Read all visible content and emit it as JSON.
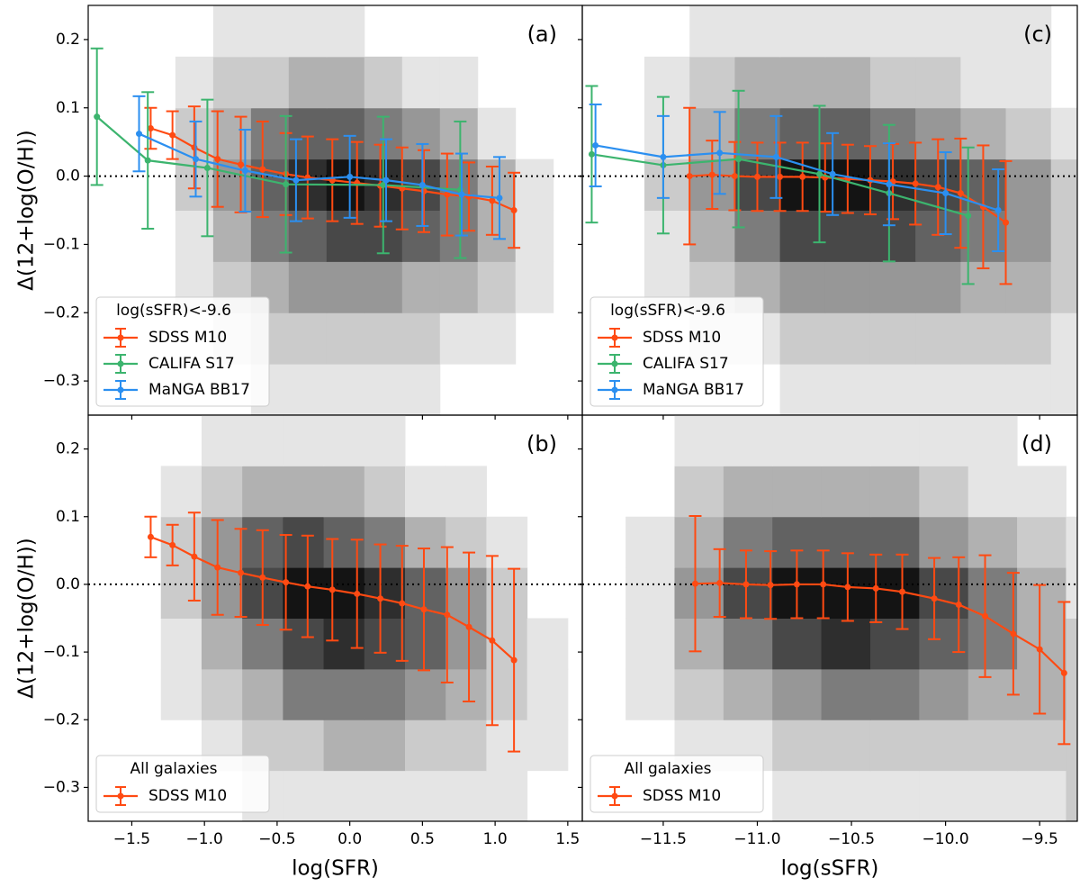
{
  "chart_data": [
    {
      "type": "errorbar",
      "panel_label": "(a)",
      "ylabel": "Δ(12+log(O/H))",
      "xlim": [
        -1.8,
        1.6
      ],
      "ylim": [
        -0.35,
        0.25
      ],
      "reference_line": 0,
      "xticks": [
        -1.5,
        -1,
        -0.5,
        0,
        0.5,
        1,
        1.5
      ],
      "yticks": [
        {
          "value": -0.3,
          "label": "−0.3"
        },
        {
          "value": -0.2,
          "label": "−0.2"
        },
        {
          "value": -0.1,
          "label": "−0.1"
        },
        {
          "value": 0,
          "label": "0.0"
        },
        0.1,
        0.2
      ],
      "legend_title": "log(sSFR)<-9.6",
      "legend": "lower left",
      "heatmap": {
        "x": [
          -1.2,
          -0.94,
          -0.68,
          -0.42,
          -0.16,
          0.1,
          0.36,
          0.62,
          0.88,
          1.14,
          1.4
        ],
        "y": [
          -0.35,
          -0.275,
          -0.2,
          -0.125,
          -0.05,
          0.025,
          0.1,
          0.175,
          0.25
        ],
        "counts": [
          [
            0,
            0,
            1,
            1,
            1,
            1,
            1,
            0,
            0,
            0
          ],
          [
            0,
            1,
            2,
            2,
            2,
            2,
            2,
            1,
            1,
            0
          ],
          [
            1,
            2,
            3,
            4,
            4,
            4,
            3,
            3,
            2,
            1
          ],
          [
            1,
            3,
            5,
            6,
            7,
            7,
            6,
            5,
            3,
            1
          ],
          [
            2,
            4,
            6,
            8,
            9,
            8,
            7,
            5,
            3,
            1
          ],
          [
            2,
            3,
            5,
            6,
            6,
            5,
            4,
            3,
            1,
            0
          ],
          [
            1,
            2,
            2,
            3,
            3,
            2,
            1,
            1,
            0,
            0
          ],
          [
            0,
            1,
            1,
            1,
            1,
            0,
            0,
            0,
            0,
            0
          ]
        ]
      },
      "series": [
        {
          "name": "SDSS M10",
          "color": "#ff4a12",
          "x": [
            -1.37,
            -1.22,
            -1.07,
            -0.91,
            -0.75,
            -0.6,
            -0.44,
            -0.29,
            -0.12,
            0.05,
            0.21,
            0.36,
            0.51,
            0.67,
            0.82,
            0.98,
            1.13
          ],
          "values": [
            0.07,
            0.06,
            0.042,
            0.025,
            0.017,
            0.01,
            0.003,
            -0.002,
            -0.006,
            -0.01,
            -0.014,
            -0.018,
            -0.022,
            -0.027,
            -0.03,
            -0.036,
            -0.05
          ],
          "errors": [
            0.03,
            0.035,
            0.06,
            0.07,
            0.07,
            0.07,
            0.06,
            0.06,
            0.06,
            0.06,
            0.06,
            0.06,
            0.06,
            0.06,
            0.05,
            0.05,
            0.055
          ]
        },
        {
          "name": "CALIFA S17",
          "color": "#3cb46e",
          "x": [
            -1.74,
            -1.39,
            -0.98,
            -0.44,
            0.23,
            0.76
          ],
          "values": [
            0.087,
            0.023,
            0.012,
            -0.012,
            -0.013,
            -0.02
          ],
          "errors": [
            0.1,
            0.1,
            0.1,
            0.1,
            0.1,
            0.1
          ]
        },
        {
          "name": "MaNGA BB17",
          "color": "#2b8ff0",
          "x": [
            -1.45,
            -1.06,
            -0.72,
            -0.37,
            0.0,
            0.25,
            0.5,
            0.77,
            1.03
          ],
          "values": [
            0.062,
            0.025,
            0.008,
            -0.006,
            -0.001,
            -0.006,
            -0.013,
            -0.027,
            -0.032
          ],
          "errors": [
            0.055,
            0.055,
            0.06,
            0.06,
            0.06,
            0.06,
            0.06,
            0.06,
            0.06
          ]
        }
      ]
    },
    {
      "type": "errorbar",
      "panel_label": "(c)",
      "xlim": [
        -11.93,
        -9.3
      ],
      "ylim": [
        -0.35,
        0.25
      ],
      "reference_line": 0,
      "xticks": [
        -11.5,
        -11,
        -10.5,
        -10,
        -9.5
      ],
      "yticks": [
        -0.3,
        -0.2,
        -0.1,
        0,
        0.1,
        0.2
      ],
      "legend_title": "log(sSFR)<-9.6",
      "legend": "lower left",
      "heatmap": {
        "x": [
          -11.6,
          -11.36,
          -11.12,
          -10.88,
          -10.64,
          -10.4,
          -10.16,
          -9.92,
          -9.68,
          -9.44,
          -9.2
        ],
        "y": [
          -0.35,
          -0.275,
          -0.2,
          -0.125,
          -0.05,
          0.025,
          0.1,
          0.175,
          0.25
        ],
        "counts": [
          [
            0,
            0,
            0,
            1,
            1,
            1,
            1,
            1,
            1,
            1
          ],
          [
            0,
            1,
            1,
            2,
            2,
            2,
            2,
            2,
            2,
            1
          ],
          [
            1,
            2,
            3,
            4,
            4,
            4,
            4,
            3,
            3,
            2
          ],
          [
            1,
            3,
            5,
            7,
            7,
            7,
            6,
            5,
            4,
            2
          ],
          [
            2,
            4,
            7,
            9,
            9,
            8,
            7,
            6,
            4,
            2
          ],
          [
            1,
            3,
            5,
            6,
            6,
            5,
            4,
            3,
            2,
            1
          ],
          [
            1,
            2,
            3,
            3,
            3,
            2,
            2,
            1,
            1,
            0
          ],
          [
            0,
            1,
            1,
            1,
            1,
            1,
            1,
            1,
            1,
            0
          ]
        ]
      },
      "series": [
        {
          "name": "SDSS M10",
          "color": "#ff4a12",
          "x": [
            -11.36,
            -11.24,
            -11.12,
            -11.0,
            -10.88,
            -10.76,
            -10.64,
            -10.52,
            -10.4,
            -10.28,
            -10.16,
            -10.04,
            -9.92,
            -9.8,
            -9.68
          ],
          "values": [
            0.0,
            0.002,
            0.0,
            -0.001,
            -0.001,
            -0.001,
            -0.002,
            -0.004,
            -0.006,
            -0.008,
            -0.011,
            -0.016,
            -0.025,
            -0.045,
            -0.068
          ],
          "errors": [
            0.1,
            0.05,
            0.05,
            0.05,
            0.05,
            0.05,
            0.05,
            0.05,
            0.05,
            0.055,
            0.06,
            0.07,
            0.08,
            0.09,
            0.09
          ]
        },
        {
          "name": "CALIFA S17",
          "color": "#3cb46e",
          "x": [
            -11.88,
            -11.5,
            -11.1,
            -10.67,
            -10.3,
            -9.88
          ],
          "values": [
            0.032,
            0.016,
            0.025,
            0.003,
            -0.025,
            -0.058
          ],
          "errors": [
            0.1,
            0.1,
            0.1,
            0.1,
            0.1,
            0.1
          ]
        },
        {
          "name": "MaNGA BB17",
          "color": "#2b8ff0",
          "x": [
            -11.86,
            -11.5,
            -11.2,
            -10.9,
            -10.6,
            -10.3,
            -10.0,
            -9.72
          ],
          "values": [
            0.045,
            0.028,
            0.034,
            0.028,
            0.003,
            -0.012,
            -0.025,
            -0.05
          ],
          "errors": [
            0.06,
            0.06,
            0.06,
            0.06,
            0.06,
            0.06,
            0.06,
            0.06
          ]
        }
      ]
    },
    {
      "type": "errorbar",
      "panel_label": "(b)",
      "ylabel": "Δ(12+log(O/H))",
      "xlabel": "log(SFR)",
      "xlim": [
        -1.8,
        1.6
      ],
      "ylim": [
        -0.35,
        0.25
      ],
      "reference_line": 0,
      "xticks": [
        {
          "value": -1.5,
          "label": "−1.5"
        },
        {
          "value": -1,
          "label": "−1.0"
        },
        {
          "value": -0.5,
          "label": "−0.5"
        },
        {
          "value": 0,
          "label": "0.0"
        },
        0.5,
        {
          "value": 1,
          "label": "1.0"
        },
        1.5
      ],
      "yticks": [
        {
          "value": -0.3,
          "label": "−0.3"
        },
        {
          "value": -0.2,
          "label": "−0.2"
        },
        {
          "value": -0.1,
          "label": "−0.1"
        },
        {
          "value": 0,
          "label": "0.0"
        },
        0.1,
        0.2
      ],
      "legend_title": "All galaxies",
      "legend": "lower left",
      "heatmap": {
        "x": [
          -1.3,
          -1.02,
          -0.74,
          -0.46,
          -0.18,
          0.1,
          0.38,
          0.66,
          0.94,
          1.22,
          1.5
        ],
        "y": [
          -0.35,
          -0.275,
          -0.2,
          -0.125,
          -0.05,
          0.025,
          0.1,
          0.175,
          0.25
        ],
        "counts": [
          [
            0,
            0,
            1,
            1,
            1,
            1,
            1,
            1,
            1,
            0
          ],
          [
            0,
            1,
            2,
            2,
            3,
            3,
            2,
            2,
            1,
            1
          ],
          [
            1,
            2,
            3,
            5,
            5,
            5,
            4,
            3,
            2,
            1
          ],
          [
            1,
            3,
            5,
            7,
            8,
            7,
            6,
            4,
            2,
            1
          ],
          [
            2,
            4,
            7,
            9,
            9,
            8,
            6,
            4,
            2,
            0
          ],
          [
            2,
            4,
            6,
            7,
            6,
            5,
            3,
            2,
            1,
            0
          ],
          [
            1,
            2,
            3,
            3,
            3,
            2,
            1,
            1,
            0,
            0
          ],
          [
            0,
            1,
            1,
            1,
            1,
            1,
            0,
            0,
            0,
            0
          ]
        ]
      },
      "series": [
        {
          "name": "SDSS M10",
          "color": "#ff4a12",
          "x": [
            -1.37,
            -1.22,
            -1.07,
            -0.91,
            -0.75,
            -0.6,
            -0.44,
            -0.29,
            -0.12,
            0.05,
            0.21,
            0.36,
            0.51,
            0.67,
            0.82,
            0.98,
            1.13
          ],
          "values": [
            0.07,
            0.058,
            0.041,
            0.025,
            0.017,
            0.01,
            0.003,
            -0.003,
            -0.008,
            -0.014,
            -0.021,
            -0.028,
            -0.037,
            -0.045,
            -0.063,
            -0.083,
            -0.112
          ],
          "errors": [
            0.03,
            0.03,
            0.065,
            0.07,
            0.065,
            0.07,
            0.07,
            0.075,
            0.075,
            0.08,
            0.08,
            0.085,
            0.09,
            0.1,
            0.11,
            0.125,
            0.135
          ]
        }
      ]
    },
    {
      "type": "errorbar",
      "panel_label": "(d)",
      "xlabel": "log(sSFR)",
      "xlim": [
        -11.93,
        -9.3
      ],
      "ylim": [
        -0.35,
        0.25
      ],
      "reference_line": 0,
      "xticks": [
        {
          "value": -11.5,
          "label": "−11.5"
        },
        {
          "value": -11,
          "label": "−11.0"
        },
        {
          "value": -10.5,
          "label": "−10.5"
        },
        {
          "value": -10,
          "label": "−10.0"
        },
        {
          "value": -9.5,
          "label": "−9.5"
        }
      ],
      "yticks": [
        -0.3,
        -0.2,
        -0.1,
        0,
        0.1,
        0.2
      ],
      "legend_title": "All galaxies",
      "legend": "lower left",
      "heatmap": {
        "x": [
          -11.7,
          -11.44,
          -11.18,
          -10.92,
          -10.66,
          -10.4,
          -10.14,
          -9.88,
          -9.62,
          -9.36,
          -9.1
        ],
        "y": [
          -0.35,
          -0.275,
          -0.2,
          -0.125,
          -0.05,
          0.025,
          0.1,
          0.175,
          0.25
        ],
        "counts": [
          [
            0,
            0,
            0,
            1,
            1,
            1,
            1,
            1,
            1,
            2
          ],
          [
            0,
            1,
            1,
            2,
            2,
            2,
            2,
            2,
            2,
            2
          ],
          [
            1,
            2,
            3,
            4,
            5,
            5,
            4,
            3,
            3,
            2
          ],
          [
            1,
            3,
            5,
            7,
            8,
            7,
            6,
            5,
            3,
            2
          ],
          [
            1,
            4,
            7,
            9,
            9,
            9,
            7,
            5,
            3,
            1
          ],
          [
            1,
            3,
            5,
            6,
            6,
            6,
            4,
            3,
            2,
            1
          ],
          [
            0,
            2,
            3,
            3,
            3,
            3,
            2,
            1,
            1,
            0
          ],
          [
            0,
            1,
            1,
            1,
            1,
            1,
            1,
            1,
            0,
            0
          ]
        ]
      },
      "series": [
        {
          "name": "SDSS M10",
          "color": "#ff4a12",
          "x": [
            -11.33,
            -11.2,
            -11.06,
            -10.93,
            -10.79,
            -10.65,
            -10.52,
            -10.37,
            -10.23,
            -10.06,
            -9.93,
            -9.79,
            -9.64,
            -9.5,
            -9.37
          ],
          "values": [
            0.001,
            0.002,
            0.0,
            -0.001,
            0.0,
            0.0,
            -0.004,
            -0.006,
            -0.011,
            -0.021,
            -0.03,
            -0.047,
            -0.073,
            -0.096,
            -0.131
          ],
          "errors": [
            0.1,
            0.05,
            0.05,
            0.05,
            0.05,
            0.05,
            0.05,
            0.05,
            0.055,
            0.06,
            0.07,
            0.09,
            0.09,
            0.095,
            0.105
          ]
        }
      ]
    }
  ]
}
